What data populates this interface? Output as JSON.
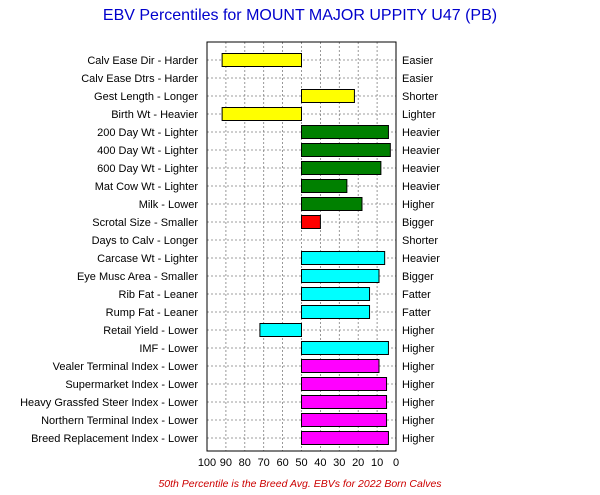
{
  "chart_data": {
    "type": "bar",
    "orientation": "horizontal",
    "title": "EBV Percentiles for MOUNT MAJOR UPPITY U47 (PB)",
    "footnote": "50th Percentile is the Breed Avg. EBVs for 2022 Born Calves",
    "x_axis": {
      "reversed": true,
      "xlim": [
        100,
        0
      ],
      "ticks": [
        100,
        90,
        80,
        70,
        60,
        50,
        40,
        30,
        20,
        10,
        0
      ],
      "tick_labels": [
        "100",
        "90",
        "80",
        "70",
        "60",
        "50",
        "40",
        "30",
        "20",
        "10",
        "0"
      ]
    },
    "grid": true,
    "baseline": 50,
    "rows": [
      {
        "left": "Calv Ease Dir - Harder",
        "right": "Easier",
        "value": 92,
        "color": "#ffff00"
      },
      {
        "left": "Calv Ease Dtrs - Harder",
        "right": "Easier",
        "value": null,
        "color": null
      },
      {
        "left": "Gest Length - Longer",
        "right": "Shorter",
        "value": 22,
        "color": "#ffff00"
      },
      {
        "left": "Birth Wt - Heavier",
        "right": "Lighter",
        "value": 92,
        "color": "#ffff00"
      },
      {
        "left": "200 Day Wt - Lighter",
        "right": "Heavier",
        "value": 4,
        "color": "#008000"
      },
      {
        "left": "400 Day Wt - Lighter",
        "right": "Heavier",
        "value": 3,
        "color": "#008000"
      },
      {
        "left": "600 Day Wt - Lighter",
        "right": "Heavier",
        "value": 8,
        "color": "#008000"
      },
      {
        "left": "Mat Cow Wt - Lighter",
        "right": "Heavier",
        "value": 26,
        "color": "#008000"
      },
      {
        "left": "Milk - Lower",
        "right": "Higher",
        "value": 18,
        "color": "#008000"
      },
      {
        "left": "Scrotal Size - Smaller",
        "right": "Bigger",
        "value": 40,
        "color": "#ff0000"
      },
      {
        "left": "Days to Calv - Longer",
        "right": "Shorter",
        "value": null,
        "color": null
      },
      {
        "left": "Carcase Wt - Lighter",
        "right": "Heavier",
        "value": 6,
        "color": "#00ffff"
      },
      {
        "left": "Eye Musc Area - Smaller",
        "right": "Bigger",
        "value": 9,
        "color": "#00ffff"
      },
      {
        "left": "Rib Fat - Leaner",
        "right": "Fatter",
        "value": 14,
        "color": "#00ffff"
      },
      {
        "left": "Rump Fat - Leaner",
        "right": "Fatter",
        "value": 14,
        "color": "#00ffff"
      },
      {
        "left": "Retail Yield - Lower",
        "right": "Higher",
        "value": 72,
        "color": "#00ffff"
      },
      {
        "left": "IMF - Lower",
        "right": "Higher",
        "value": 4,
        "color": "#00ffff"
      },
      {
        "left": "Vealer Terminal Index - Lower",
        "right": "Higher",
        "value": 9,
        "color": "#ff00ff"
      },
      {
        "left": "Supermarket Index - Lower",
        "right": "Higher",
        "value": 5,
        "color": "#ff00ff"
      },
      {
        "left": "Heavy Grassfed Steer Index - Lower",
        "right": "Higher",
        "value": 5,
        "color": "#ff00ff"
      },
      {
        "left": "Northern Terminal Index - Lower",
        "right": "Higher",
        "value": 5,
        "color": "#ff00ff"
      },
      {
        "left": "Breed Replacement Index - Lower",
        "right": "Higher",
        "value": 4,
        "color": "#ff00ff"
      }
    ]
  }
}
